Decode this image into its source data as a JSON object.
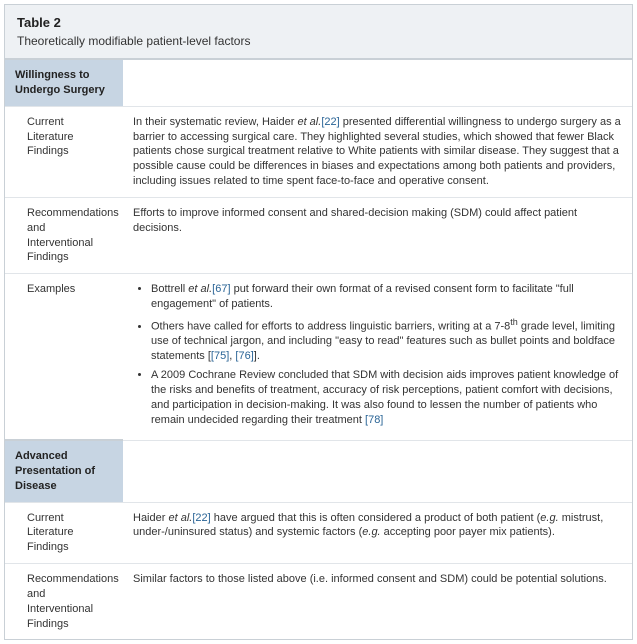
{
  "table": {
    "label": "Table 2",
    "caption": "Theoretically modifiable patient-level factors",
    "section1_header": "Willingness to Undergo Surgery",
    "row1_label": "Current Literature Findings",
    "row1_content_pre": "In their systematic review, Haider ",
    "row1_etal": "et al.",
    "row1_ref": "[22]",
    "row1_content_post": " presented differential willingness to undergo surgery as a barrier to accessing surgical care. They highlighted several studies, which showed that fewer Black patients chose surgical treatment relative to White patients with similar disease. They suggest that a possible cause could be differences in biases and expectations among both patients and providers, including issues related to time spent face-to-face and operative consent.",
    "row2_label": "Recommendations and Interventional Findings",
    "row2_content": "Efforts to improve informed consent and shared-decision making (SDM) could affect patient decisions.",
    "row3_label": "Examples",
    "bullet1_pre": "Bottrell ",
    "bullet1_etal": "et al.",
    "bullet1_ref": "[67]",
    "bullet1_post": " put forward their own format of a revised consent form to facilitate \"full engagement\" of patients.",
    "bullet2_pre": "Others have called for efforts to address linguistic barriers, writing at a 7-8",
    "bullet2_sup": "th",
    "bullet2_mid": " grade level, limiting use of technical jargon, and including \"easy to read\" features such as bullet points and boldface statements [",
    "bullet2_ref1": "[75]",
    "bullet2_comma": ", ",
    "bullet2_ref2": "[76]",
    "bullet2_post": "].",
    "bullet3_pre": "A 2009 Cochrane Review concluded that SDM with decision aids improves patient knowledge of the risks and benefits of treatment, accuracy of risk perceptions, patient comfort with decisions, and participation in decision-making. It was also found to lessen the number of patients who remain undecided regarding their treatment ",
    "bullet3_ref": "[78]",
    "section2_header": "Advanced Presentation of Disease",
    "row4_label": "Current Literature Findings",
    "row4_pre": "Haider ",
    "row4_etal": "et al.",
    "row4_ref": "[22]",
    "row4_mid1": " have argued that this is often considered a product of both patient (",
    "row4_eg1": "e.g.",
    "row4_mid2": " mistrust, under-/uninsured status) and systemic factors (",
    "row4_eg2": "e.g.",
    "row4_post": " accepting poor payer mix patients).",
    "row5_label": "Recommendations and Interventional Findings",
    "row5_content": "Similar factors to those listed above (i.e. informed consent and SDM) could be potential solutions."
  }
}
